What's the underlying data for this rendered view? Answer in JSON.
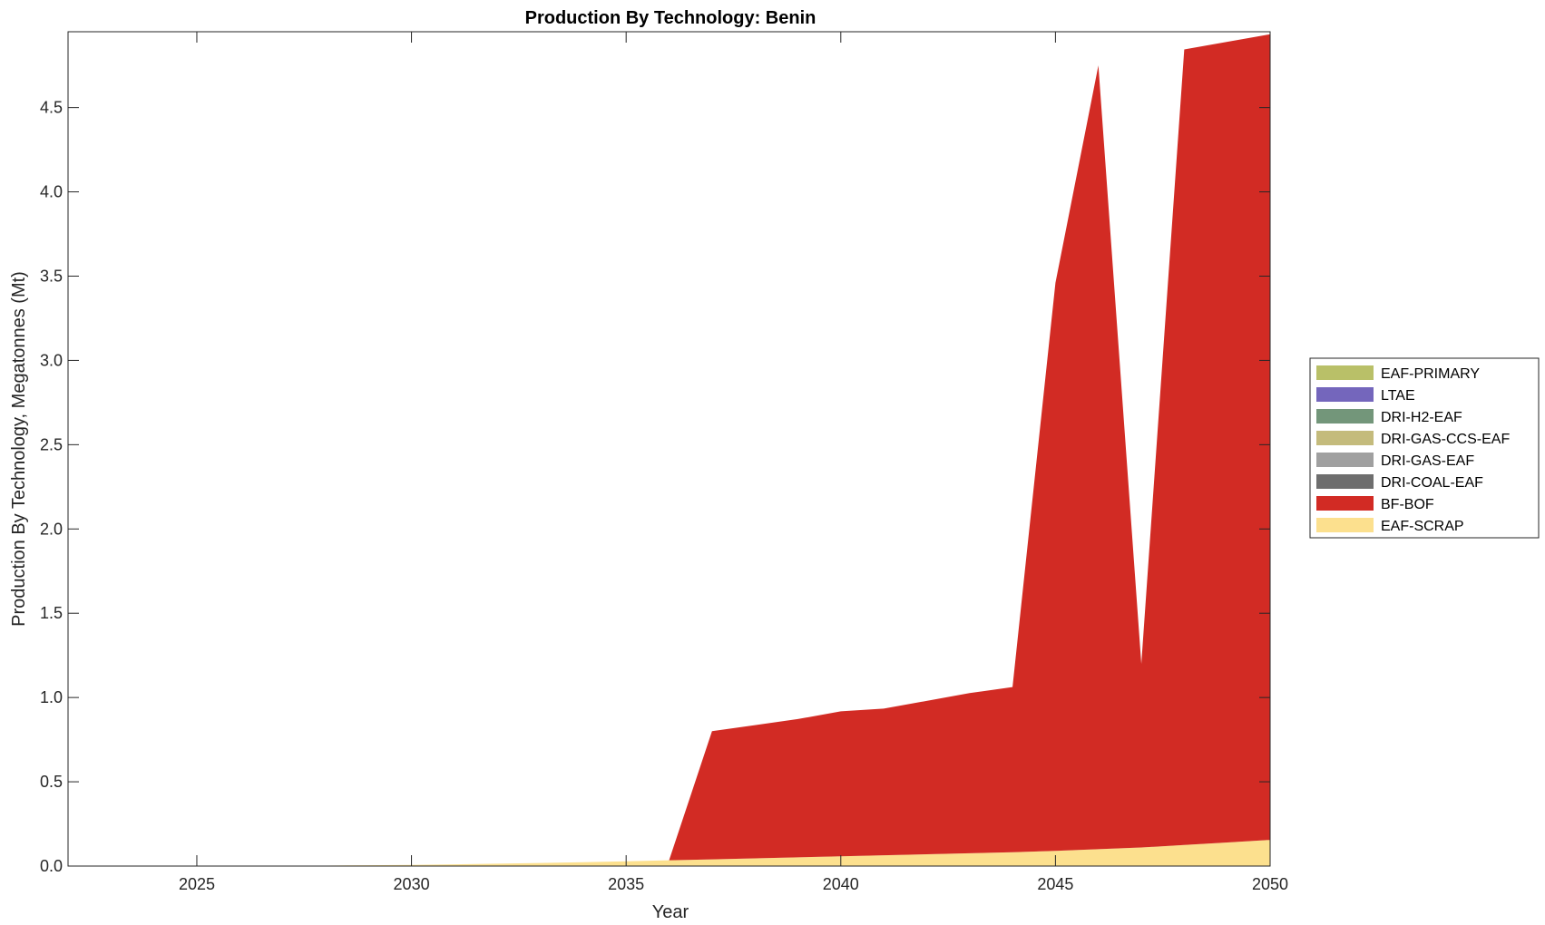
{
  "chart_data": {
    "type": "area",
    "stacked": true,
    "title": "Production By Technology: Benin",
    "xlabel": "Year",
    "ylabel": "Production By Technology, Megatonnes (Mt)",
    "xlim": [
      2022,
      2050
    ],
    "ylim": [
      0,
      4.95
    ],
    "xticks": [
      2025,
      2030,
      2035,
      2040,
      2045,
      2050
    ],
    "yticks": [
      0.0,
      0.5,
      1.0,
      1.5,
      2.0,
      2.5,
      3.0,
      3.5,
      4.0,
      4.5
    ],
    "ytick_labels": [
      "0.0",
      "0.5",
      "1.0",
      "1.5",
      "2.0",
      "2.5",
      "3.0",
      "3.5",
      "4.0",
      "4.5"
    ],
    "grid": false,
    "legend_position": "right",
    "x": [
      2022,
      2023,
      2024,
      2025,
      2026,
      2027,
      2028,
      2029,
      2030,
      2031,
      2032,
      2033,
      2034,
      2035,
      2036,
      2037,
      2038,
      2039,
      2040,
      2041,
      2042,
      2043,
      2044,
      2045,
      2046,
      2047,
      2048,
      2049,
      2050
    ],
    "series": [
      {
        "name": "EAF-SCRAP",
        "color": "#FCE08E",
        "values": [
          0,
          0,
          0,
          0,
          0.001,
          0.002,
          0.003,
          0.005,
          0.007,
          0.01,
          0.014,
          0.018,
          0.023,
          0.028,
          0.034,
          0.04,
          0.046,
          0.052,
          0.058,
          0.064,
          0.07,
          0.076,
          0.082,
          0.09,
          0.1,
          0.11,
          0.125,
          0.14,
          0.155
        ]
      },
      {
        "name": "BF-BOF",
        "color": "#D22B24",
        "values": [
          0,
          0,
          0,
          0,
          0,
          0,
          0,
          0,
          0,
          0,
          0,
          0,
          0,
          0,
          0,
          0.76,
          0.79,
          0.82,
          0.86,
          0.87,
          0.91,
          0.95,
          0.98,
          3.37,
          4.65,
          1.09,
          4.72,
          4.75,
          4.78
        ]
      },
      {
        "name": "DRI-COAL-EAF",
        "color": "#6E6E6E",
        "values": [
          0,
          0,
          0,
          0,
          0,
          0,
          0,
          0,
          0,
          0,
          0,
          0,
          0,
          0,
          0,
          0,
          0,
          0,
          0,
          0,
          0,
          0,
          0,
          0,
          0,
          0,
          0,
          0,
          0
        ]
      },
      {
        "name": "DRI-GAS-EAF",
        "color": "#A0A0A0",
        "values": [
          0,
          0,
          0,
          0,
          0,
          0,
          0,
          0,
          0,
          0,
          0,
          0,
          0,
          0,
          0,
          0,
          0,
          0,
          0,
          0,
          0,
          0,
          0,
          0,
          0,
          0,
          0,
          0,
          0
        ]
      },
      {
        "name": "DRI-GAS-CCS-EAF",
        "color": "#C4BB7C",
        "values": [
          0,
          0,
          0,
          0,
          0,
          0,
          0,
          0,
          0,
          0,
          0,
          0,
          0,
          0,
          0,
          0,
          0,
          0,
          0,
          0,
          0,
          0,
          0,
          0,
          0,
          0,
          0,
          0,
          0
        ]
      },
      {
        "name": "DRI-H2-EAF",
        "color": "#73967A",
        "values": [
          0,
          0,
          0,
          0,
          0,
          0,
          0,
          0,
          0,
          0,
          0,
          0,
          0,
          0,
          0,
          0,
          0,
          0,
          0,
          0,
          0,
          0,
          0,
          0,
          0,
          0,
          0,
          0,
          0
        ]
      },
      {
        "name": "LTAE",
        "color": "#7466BC",
        "values": [
          0,
          0,
          0,
          0,
          0,
          0,
          0,
          0,
          0,
          0,
          0,
          0,
          0,
          0,
          0,
          0,
          0,
          0,
          0,
          0,
          0,
          0,
          0,
          0,
          0,
          0,
          0,
          0,
          0
        ]
      },
      {
        "name": "EAF-PRIMARY",
        "color": "#B9C068",
        "values": [
          0,
          0,
          0,
          0,
          0,
          0,
          0,
          0,
          0,
          0,
          0,
          0,
          0,
          0,
          0,
          0,
          0,
          0,
          0,
          0,
          0,
          0,
          0,
          0,
          0,
          0,
          0,
          0,
          0
        ]
      }
    ],
    "legend_order": [
      "EAF-PRIMARY",
      "LTAE",
      "DRI-H2-EAF",
      "DRI-GAS-CCS-EAF",
      "DRI-GAS-EAF",
      "DRI-COAL-EAF",
      "BF-BOF",
      "EAF-SCRAP"
    ]
  }
}
